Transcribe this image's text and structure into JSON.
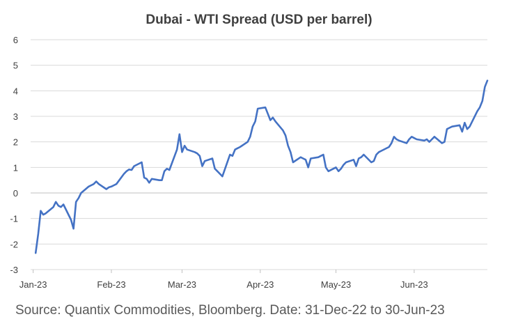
{
  "chart_data": {
    "type": "line",
    "title": "Dubai - WTI Spread (USD per barrel)",
    "xlabel": "",
    "ylabel": "",
    "x_range": [
      "2022-12-31",
      "2023-06-30"
    ],
    "ylim": [
      -3,
      6
    ],
    "yticks": [
      -3,
      -2,
      -1,
      0,
      1,
      2,
      3,
      4,
      5,
      6
    ],
    "xticks": [
      {
        "label": "Jan-23",
        "date": "2023-01-01"
      },
      {
        "label": "Feb-23",
        "date": "2023-02-01"
      },
      {
        "label": "Mar-23",
        "date": "2023-03-01"
      },
      {
        "label": "Apr-23",
        "date": "2023-04-01"
      },
      {
        "label": "May-23",
        "date": "2023-05-01"
      },
      {
        "label": "Jun-23",
        "date": "2023-06-01"
      }
    ],
    "grid": "horizontal",
    "legend": "none",
    "series": [
      {
        "color": "#4472c4",
        "points": [
          [
            "2023-01-02",
            -2.35
          ],
          [
            "2023-01-03",
            -1.6
          ],
          [
            "2023-01-04",
            -0.7
          ],
          [
            "2023-01-05",
            -0.85
          ],
          [
            "2023-01-06",
            -0.8
          ],
          [
            "2023-01-09",
            -0.55
          ],
          [
            "2023-01-10",
            -0.35
          ],
          [
            "2023-01-11",
            -0.5
          ],
          [
            "2023-01-12",
            -0.55
          ],
          [
            "2023-01-13",
            -0.45
          ],
          [
            "2023-01-16",
            -1.05
          ],
          [
            "2023-01-17",
            -1.4
          ],
          [
            "2023-01-18",
            -0.35
          ],
          [
            "2023-01-19",
            -0.2
          ],
          [
            "2023-01-20",
            0.0
          ],
          [
            "2023-01-23",
            0.25
          ],
          [
            "2023-01-24",
            0.3
          ],
          [
            "2023-01-25",
            0.35
          ],
          [
            "2023-01-26",
            0.45
          ],
          [
            "2023-01-27",
            0.35
          ],
          [
            "2023-01-30",
            0.15
          ],
          [
            "2023-01-31",
            0.22
          ],
          [
            "2023-02-01",
            0.25
          ],
          [
            "2023-02-02",
            0.3
          ],
          [
            "2023-02-03",
            0.35
          ],
          [
            "2023-02-06",
            0.75
          ],
          [
            "2023-02-07",
            0.85
          ],
          [
            "2023-02-08",
            0.92
          ],
          [
            "2023-02-09",
            0.9
          ],
          [
            "2023-02-10",
            1.05
          ],
          [
            "2023-02-13",
            1.2
          ],
          [
            "2023-02-14",
            0.6
          ],
          [
            "2023-02-15",
            0.55
          ],
          [
            "2023-02-16",
            0.4
          ],
          [
            "2023-02-17",
            0.55
          ],
          [
            "2023-02-20",
            0.5
          ],
          [
            "2023-02-21",
            0.5
          ],
          [
            "2023-02-22",
            0.85
          ],
          [
            "2023-02-23",
            0.95
          ],
          [
            "2023-02-24",
            0.9
          ],
          [
            "2023-02-27",
            1.7
          ],
          [
            "2023-02-28",
            2.3
          ],
          [
            "2023-03-01",
            1.6
          ],
          [
            "2023-03-02",
            1.85
          ],
          [
            "2023-03-03",
            1.7
          ],
          [
            "2023-03-06",
            1.6
          ],
          [
            "2023-03-07",
            1.55
          ],
          [
            "2023-03-08",
            1.45
          ],
          [
            "2023-03-09",
            1.05
          ],
          [
            "2023-03-10",
            1.25
          ],
          [
            "2023-03-13",
            1.35
          ],
          [
            "2023-03-14",
            0.95
          ],
          [
            "2023-03-15",
            0.85
          ],
          [
            "2023-03-16",
            0.75
          ],
          [
            "2023-03-17",
            0.65
          ],
          [
            "2023-03-20",
            1.5
          ],
          [
            "2023-03-21",
            1.45
          ],
          [
            "2023-03-22",
            1.7
          ],
          [
            "2023-03-23",
            1.75
          ],
          [
            "2023-03-24",
            1.8
          ],
          [
            "2023-03-27",
            2.0
          ],
          [
            "2023-03-28",
            2.2
          ],
          [
            "2023-03-29",
            2.6
          ],
          [
            "2023-03-30",
            2.8
          ],
          [
            "2023-03-31",
            3.3
          ],
          [
            "2023-04-03",
            3.35
          ],
          [
            "2023-04-04",
            3.1
          ],
          [
            "2023-04-05",
            2.85
          ],
          [
            "2023-04-06",
            2.95
          ],
          [
            "2023-04-07",
            2.8
          ],
          [
            "2023-04-10",
            2.45
          ],
          [
            "2023-04-11",
            2.25
          ],
          [
            "2023-04-12",
            1.85
          ],
          [
            "2023-04-13",
            1.6
          ],
          [
            "2023-04-14",
            1.2
          ],
          [
            "2023-04-17",
            1.4
          ],
          [
            "2023-04-18",
            1.35
          ],
          [
            "2023-04-19",
            1.3
          ],
          [
            "2023-04-20",
            1.0
          ],
          [
            "2023-04-21",
            1.35
          ],
          [
            "2023-04-24",
            1.4
          ],
          [
            "2023-04-25",
            1.45
          ],
          [
            "2023-04-26",
            1.5
          ],
          [
            "2023-04-27",
            1.0
          ],
          [
            "2023-04-28",
            0.85
          ],
          [
            "2023-05-01",
            1.0
          ],
          [
            "2023-05-02",
            0.85
          ],
          [
            "2023-05-03",
            0.95
          ],
          [
            "2023-05-04",
            1.1
          ],
          [
            "2023-05-05",
            1.2
          ],
          [
            "2023-05-08",
            1.3
          ],
          [
            "2023-05-09",
            1.05
          ],
          [
            "2023-05-10",
            1.35
          ],
          [
            "2023-05-11",
            1.4
          ],
          [
            "2023-05-12",
            1.5
          ],
          [
            "2023-05-15",
            1.2
          ],
          [
            "2023-05-16",
            1.25
          ],
          [
            "2023-05-17",
            1.5
          ],
          [
            "2023-05-18",
            1.6
          ],
          [
            "2023-05-19",
            1.65
          ],
          [
            "2023-05-22",
            1.8
          ],
          [
            "2023-05-23",
            1.95
          ],
          [
            "2023-05-24",
            2.2
          ],
          [
            "2023-05-25",
            2.1
          ],
          [
            "2023-05-26",
            2.05
          ],
          [
            "2023-05-29",
            1.95
          ],
          [
            "2023-05-30",
            2.1
          ],
          [
            "2023-05-31",
            2.2
          ],
          [
            "2023-06-01",
            2.15
          ],
          [
            "2023-06-02",
            2.1
          ],
          [
            "2023-06-05",
            2.05
          ],
          [
            "2023-06-06",
            2.1
          ],
          [
            "2023-06-07",
            2.0
          ],
          [
            "2023-06-08",
            2.1
          ],
          [
            "2023-06-09",
            2.2
          ],
          [
            "2023-06-12",
            1.95
          ],
          [
            "2023-06-13",
            2.0
          ],
          [
            "2023-06-14",
            2.5
          ],
          [
            "2023-06-15",
            2.55
          ],
          [
            "2023-06-16",
            2.6
          ],
          [
            "2023-06-19",
            2.65
          ],
          [
            "2023-06-20",
            2.4
          ],
          [
            "2023-06-21",
            2.75
          ],
          [
            "2023-06-22",
            2.5
          ],
          [
            "2023-06-23",
            2.6
          ],
          [
            "2023-06-26",
            3.2
          ],
          [
            "2023-06-27",
            3.35
          ],
          [
            "2023-06-28",
            3.6
          ],
          [
            "2023-06-29",
            4.15
          ],
          [
            "2023-06-30",
            4.4
          ]
        ]
      }
    ]
  },
  "source_note": "Source: Quantix Commodities, Bloomberg. Date: 31-Dec-22 to 30-Jun-23"
}
